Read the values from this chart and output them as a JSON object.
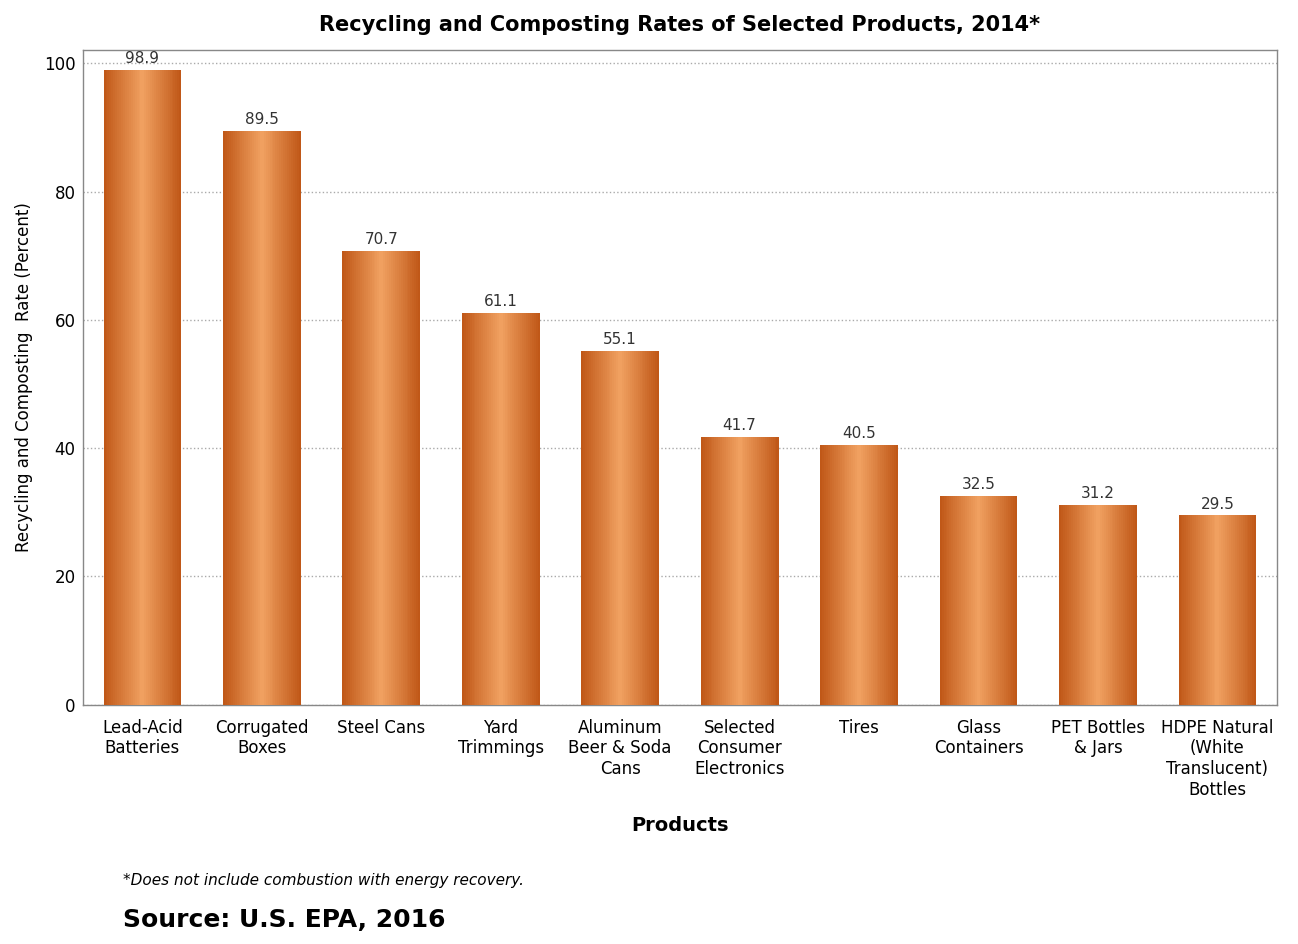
{
  "title": "Recycling and Composting Rates of Selected Products, 2014*",
  "categories": [
    "Lead-Acid\nBatteries",
    "Corrugated\nBoxes",
    "Steel Cans",
    "Yard\nTrimmings",
    "Aluminum\nBeer & Soda\nCans",
    "Selected\nConsumer\nElectronics",
    "Tires",
    "Glass\nContainers",
    "PET Bottles\n& Jars",
    "HDPE Natural\n(White\nTranslucent)\nBottles"
  ],
  "values": [
    98.9,
    89.5,
    70.7,
    61.1,
    55.1,
    41.7,
    40.5,
    32.5,
    31.2,
    29.5
  ],
  "bar_color_center": "#F0A060",
  "bar_color_edge": "#C05818",
  "bar_color_mid": "#E07830",
  "ylabel": "Recycling and Composting  Rate (Percent)",
  "xlabel": "Products",
  "ylim": [
    0,
    102
  ],
  "yticks": [
    0,
    20,
    40,
    60,
    80,
    100
  ],
  "grid_color": "#aaaaaa",
  "footnote": "*Does not include combustion with energy recovery.",
  "source": "Source: U.S. EPA, 2016",
  "title_fontsize": 15,
  "ylabel_fontsize": 12,
  "xlabel_fontsize": 14,
  "tick_fontsize": 12,
  "value_label_fontsize": 11,
  "footnote_fontsize": 11,
  "source_fontsize": 18,
  "background_color": "#ffffff",
  "border_color": "#888888"
}
